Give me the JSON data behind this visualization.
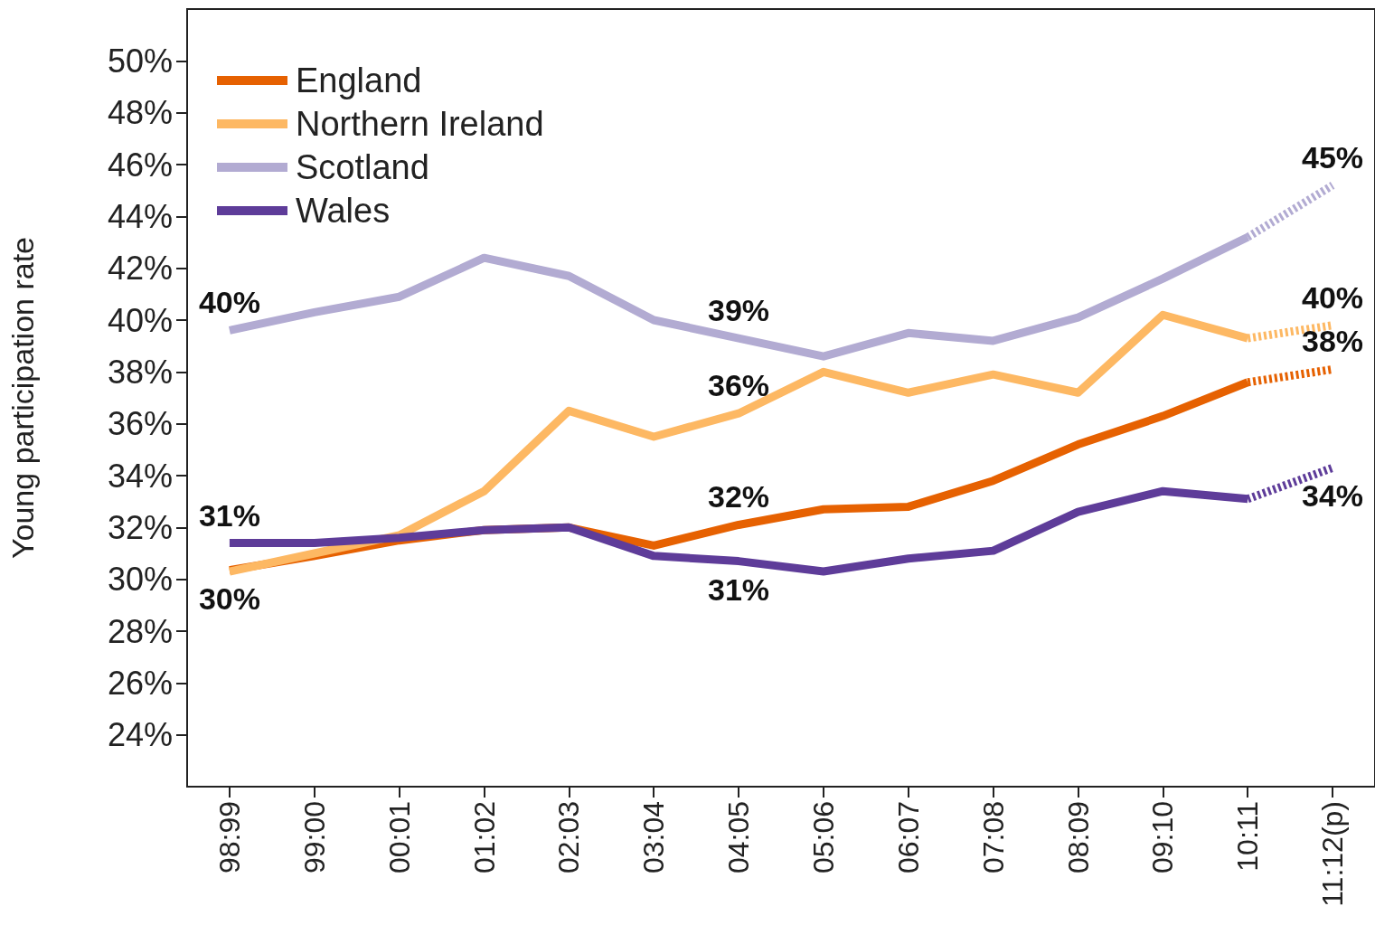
{
  "chart_data": {
    "type": "line",
    "ylabel": "Young participation rate",
    "categories": [
      "98:99",
      "99:00",
      "00:01",
      "01:02",
      "02:03",
      "03:04",
      "04:05",
      "05:06",
      "06:07",
      "07:08",
      "08:09",
      "09:10",
      "10:11",
      "11:12(p)"
    ],
    "ylim": [
      22,
      52
    ],
    "yticks": [
      {
        "value": 24,
        "label": "24%"
      },
      {
        "value": 26,
        "label": "26%"
      },
      {
        "value": 28,
        "label": "28%"
      },
      {
        "value": 30,
        "label": "30%"
      },
      {
        "value": 32,
        "label": "32%"
      },
      {
        "value": 34,
        "label": "34%"
      },
      {
        "value": 36,
        "label": "36%"
      },
      {
        "value": 38,
        "label": "38%"
      },
      {
        "value": 40,
        "label": "40%"
      },
      {
        "value": 42,
        "label": "42%"
      },
      {
        "value": 44,
        "label": "44%"
      },
      {
        "value": 46,
        "label": "46%"
      },
      {
        "value": 48,
        "label": "48%"
      },
      {
        "value": 50,
        "label": "50%"
      }
    ],
    "grid": false,
    "legend": "top left",
    "marker": "none",
    "series": [
      {
        "name": "England",
        "color": "#e66101",
        "line_style": "solid",
        "values": [
          30.35,
          30.9,
          31.5,
          31.9,
          32.0,
          31.3,
          32.1,
          32.7,
          32.8,
          33.8,
          35.2,
          36.3,
          37.6,
          null
        ]
      },
      {
        "name": "Northern Ireland",
        "color": "#fdb863",
        "line_style": "solid",
        "values": [
          30.3,
          31.0,
          31.7,
          33.4,
          36.5,
          35.5,
          36.4,
          38.0,
          37.2,
          37.9,
          37.2,
          40.2,
          39.3,
          null
        ]
      },
      {
        "name": "Scotland",
        "color": "#b2abd2",
        "line_style": "solid",
        "values": [
          39.6,
          40.3,
          40.9,
          42.4,
          41.7,
          40.0,
          39.3,
          38.6,
          39.5,
          39.2,
          40.1,
          41.6,
          43.2,
          null
        ]
      },
      {
        "name": "Wales",
        "color": "#5e3c99",
        "line_style": "solid",
        "values": [
          31.4,
          31.4,
          31.6,
          31.9,
          32.0,
          30.9,
          30.7,
          30.3,
          30.8,
          31.1,
          32.6,
          33.4,
          33.1,
          null
        ]
      },
      {
        "color": "#e66101",
        "line_style": "dotted",
        "values": [
          null,
          null,
          null,
          null,
          null,
          null,
          null,
          null,
          null,
          null,
          null,
          null,
          37.6,
          38.1
        ]
      },
      {
        "color": "#fdb863",
        "line_style": "dotted",
        "values": [
          null,
          null,
          null,
          null,
          null,
          null,
          null,
          null,
          null,
          null,
          null,
          null,
          39.3,
          39.8
        ]
      },
      {
        "color": "#b2abd2",
        "line_style": "dotted",
        "values": [
          null,
          null,
          null,
          null,
          null,
          null,
          null,
          null,
          null,
          null,
          null,
          null,
          43.2,
          45.2
        ]
      },
      {
        "color": "#5e3c99",
        "line_style": "dotted",
        "values": [
          null,
          null,
          null,
          null,
          null,
          null,
          null,
          null,
          null,
          null,
          null,
          null,
          33.1,
          34.3
        ]
      }
    ],
    "annotations": [
      {
        "text": "40%",
        "x": "98:99",
        "y": 39.6
      },
      {
        "text": "31%",
        "x": "98:99",
        "y": 31.4
      },
      {
        "text": "30%",
        "x": "98:99",
        "y": 30.35
      },
      {
        "text": "39%",
        "x": "04:05",
        "y": 39.3
      },
      {
        "text": "36%",
        "x": "04:05",
        "y": 36.4
      },
      {
        "text": "32%",
        "x": "04:05",
        "y": 32.1
      },
      {
        "text": "31%",
        "x": "04:05",
        "y": 30.7
      },
      {
        "text": "45%",
        "x": "11:12(p)",
        "y": 45.2
      },
      {
        "text": "40%",
        "x": "11:12(p)",
        "y": 39.8
      },
      {
        "text": "38%",
        "x": "11:12(p)",
        "y": 38.1
      },
      {
        "text": "34%",
        "x": "11:12(p)",
        "y": 34.3
      }
    ]
  }
}
